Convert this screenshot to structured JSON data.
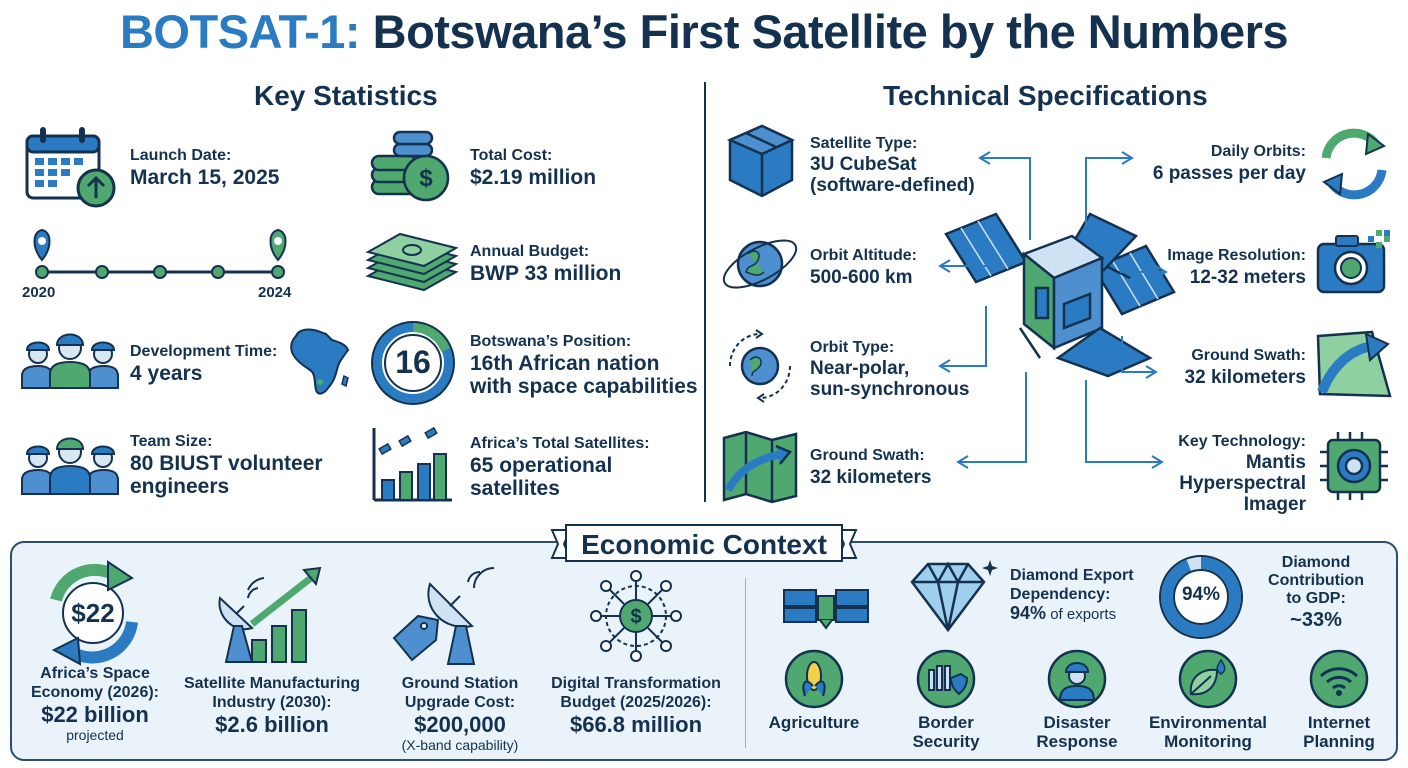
{
  "title": {
    "accent": "BOTSAT-1:",
    "rest": " Botswana’s First Satellite by the Numbers"
  },
  "key_stats": {
    "heading": "Key Statistics",
    "launch": {
      "label": "Launch Date:",
      "value": "March 15, 2025"
    },
    "timeline": {
      "start": "2020",
      "end": "2024"
    },
    "dev_time": {
      "label": "Development Time:",
      "value": "4 years"
    },
    "team": {
      "label": "Team Size:",
      "value_line1": "80 BIUST volunteer",
      "value_line2": "engineers"
    },
    "cost": {
      "label": "Total Cost:",
      "value": "$2.19 million"
    },
    "budget": {
      "label": "Annual Budget:",
      "value": "BWP 33 million"
    },
    "position": {
      "badge": "16",
      "label": "Botswana’s Position:",
      "value_line1": "16th African nation",
      "value_line2": "with space capabilities"
    },
    "satellites": {
      "label": "Africa’s Total Satellites:",
      "value_line1": "65 operational",
      "value_line2": "satellites"
    }
  },
  "tech_specs": {
    "heading": "Technical Specifications",
    "type": {
      "label": "Satellite Type:",
      "value_line1": "3U CubeSat",
      "value_line2": "(software-defined)"
    },
    "altitude": {
      "label": "Orbit Altitude:",
      "value": "500-600 km"
    },
    "orbit_type": {
      "label": "Orbit Type:",
      "value_line1": "Near-polar,",
      "value_line2": "sun-synchronous"
    },
    "swath_left": {
      "label": "Ground Swath:",
      "value": "32 kilometers"
    },
    "daily_orbits": {
      "label": "Daily Orbits:",
      "value": "6 passes per day"
    },
    "resolution": {
      "label": "Image Resolution:",
      "value": "12-32 meters"
    },
    "swath_right": {
      "label": "Ground Swath:",
      "value": "32 kilometers"
    },
    "key_tech": {
      "label": "Key Technology:",
      "value_line1": "Mantis",
      "value_line2": "Hyperspectral",
      "value_line3": "Imager"
    }
  },
  "economic": {
    "heading": "Economic Context",
    "space_economy": {
      "badge": "$22",
      "label_line1": "Africa’s Space",
      "label_line2": "Economy (2026):",
      "value": "$22 billion",
      "sub": "projected"
    },
    "manufacturing": {
      "label_line1": "Satellite Manufacturing",
      "label_line2": "Industry (2030):",
      "value": "$2.6 billion"
    },
    "ground_station": {
      "label_line1": "Ground Station",
      "label_line2": "Upgrade Cost:",
      "value": "$200,000",
      "sub": "(X-band capability)"
    },
    "digital": {
      "label_line1": "Digital Transformation",
      "label_line2": "Budget (2025/2026):",
      "value": "$66.8 million"
    },
    "diamond_export": {
      "label_line1": "Diamond Export",
      "label_line2": "Dependency:",
      "value_bold": "94%",
      "value_rest": " of exports"
    },
    "diamond_gdp": {
      "badge": "94%",
      "label_line1": "Diamond",
      "label_line2": "Contribution",
      "label_line3": "to GDP:",
      "value": "~33%",
      "share": 94
    },
    "use_cases": [
      {
        "line1": "Agriculture",
        "line2": ""
      },
      {
        "line1": "Border",
        "line2": "Security"
      },
      {
        "line1": "Disaster",
        "line2": "Response"
      },
      {
        "line1": "Environmental",
        "line2": "Monitoring"
      },
      {
        "line1": "Internet",
        "line2": "Planning"
      }
    ]
  },
  "colors": {
    "navy": "#14324f",
    "blue": "#2a7bc2",
    "green": "#3f9b5c",
    "light_blue": "#dbe9f5",
    "panel": "#eaf3fa"
  }
}
